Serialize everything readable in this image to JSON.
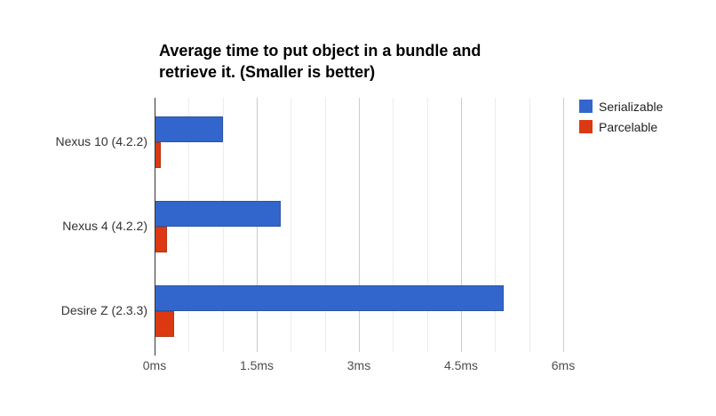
{
  "chart_data": {
    "type": "bar",
    "orientation": "horizontal",
    "title": "Average time to put object in a bundle and retrieve it. (Smaller is better)",
    "title_lines": [
      "Average time to put object in a bundle and",
      "retrieve it. (Smaller is better)"
    ],
    "categories": [
      "Nexus 10 (4.2.2)",
      "Nexus 4 (4.2.2)",
      "Desire Z (2.3.3)"
    ],
    "series": [
      {
        "name": "Serializable",
        "color": "#3366CC",
        "border_color": "#2a54a6",
        "values": [
          1.0,
          1.85,
          5.12
        ]
      },
      {
        "name": "Parcelable",
        "color": "#DC3912",
        "border_color": "#b53413",
        "values": [
          0.09,
          0.18,
          0.29
        ]
      }
    ],
    "xlabel": "",
    "ylabel": "",
    "x_axis": {
      "range": [
        0,
        6
      ],
      "unit": "ms",
      "minor_step": 0.5,
      "major_ticks": [
        {
          "value": 0,
          "label": "0ms"
        },
        {
          "value": 1.5,
          "label": "1.5ms"
        },
        {
          "value": 3,
          "label": "3ms"
        },
        {
          "value": 4.5,
          "label": "4.5ms"
        },
        {
          "value": 6,
          "label": "6ms"
        }
      ]
    },
    "legend": {
      "position": "top-right",
      "entries": [
        "Serializable",
        "Parcelable"
      ]
    },
    "grid": true,
    "colors": {
      "background": "#ffffff",
      "title_text": "#000000",
      "axis_line": "#333333",
      "gridline_minor": "#ececec",
      "gridline_major": "#cccccc",
      "category_text": "#333333",
      "tick_text": "#4d4d4d",
      "legend_text": "#222222"
    }
  }
}
